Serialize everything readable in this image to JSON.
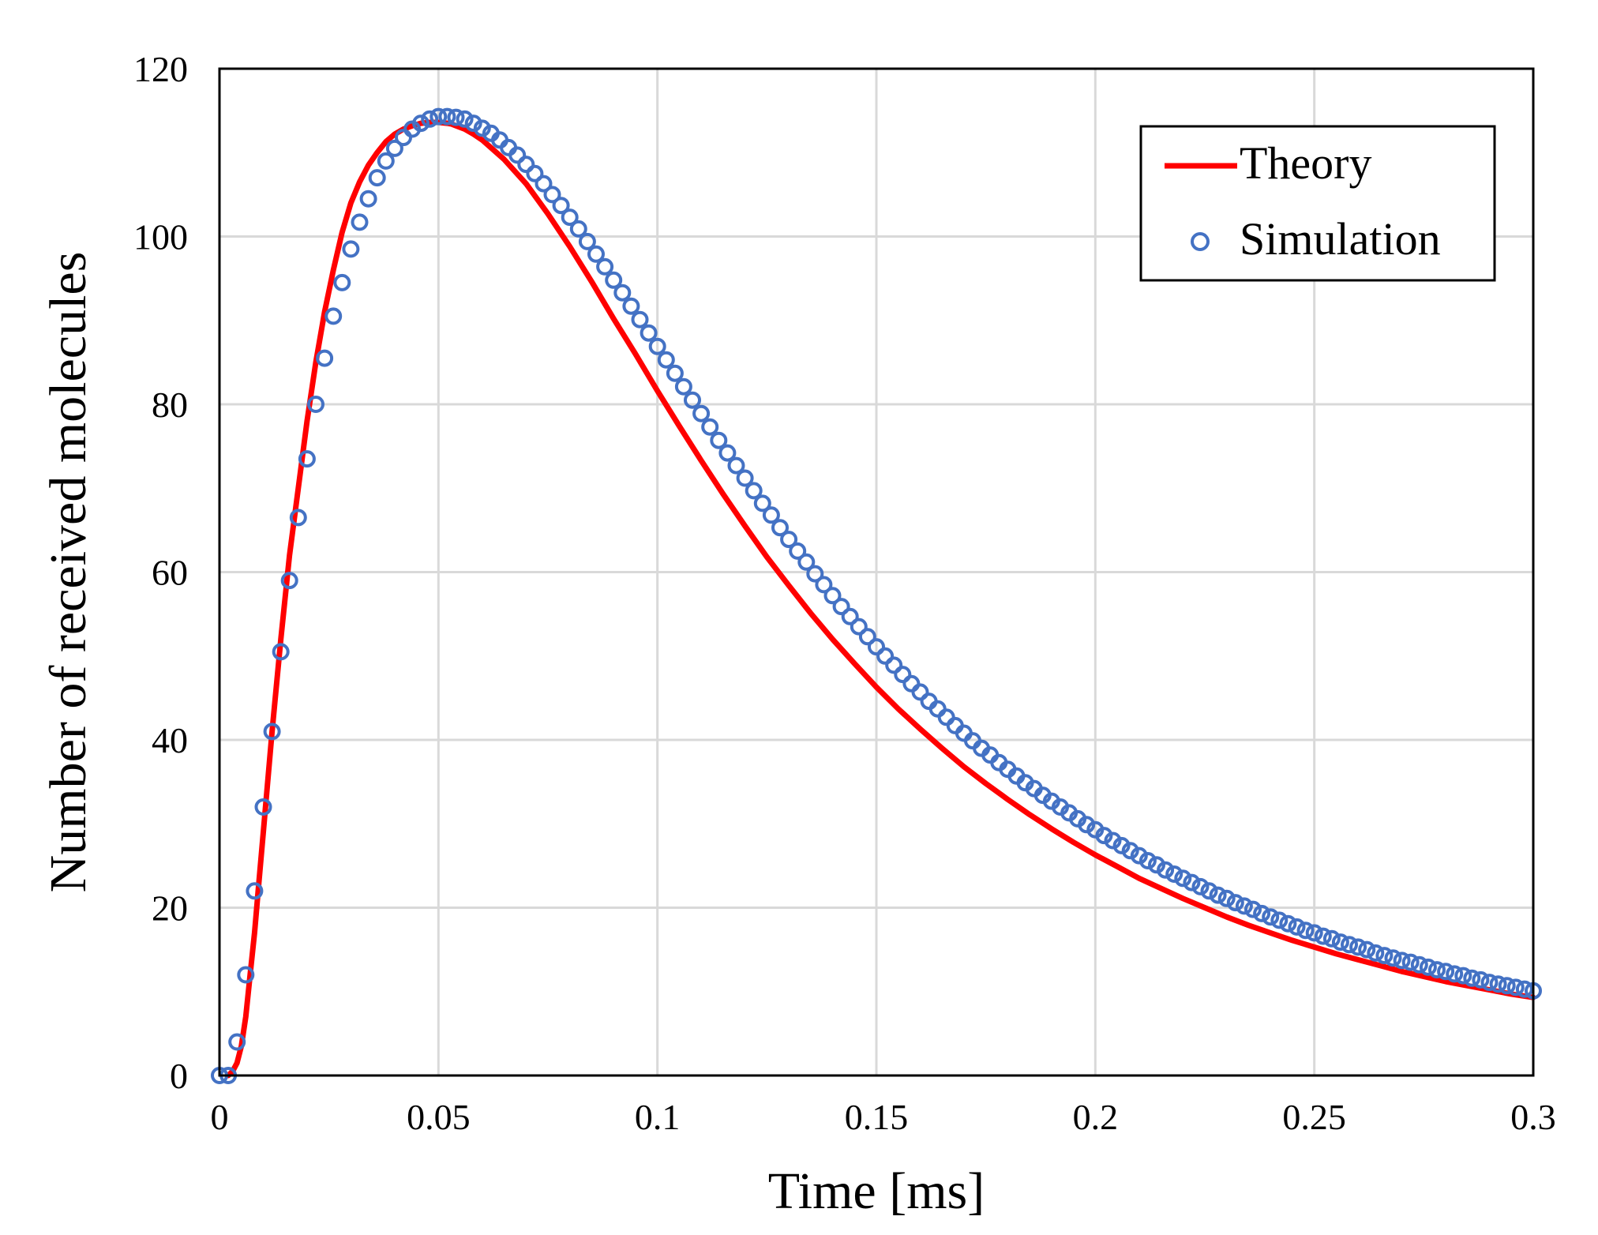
{
  "chart_data": {
    "type": "line",
    "title": "",
    "xlabel": "Time [ms]",
    "ylabel": "Number of received molecules",
    "xlim": [
      0,
      0.3
    ],
    "ylim": [
      0,
      120
    ],
    "xticks": [
      0,
      0.05,
      0.1,
      0.15,
      0.2,
      0.25,
      0.3
    ],
    "xtick_labels": [
      "0",
      "0.05",
      "0.1",
      "0.15",
      "0.2",
      "0.25",
      "0.3"
    ],
    "yticks": [
      0,
      20,
      40,
      60,
      80,
      100,
      120
    ],
    "ytick_labels": [
      "0",
      "20",
      "40",
      "60",
      "80",
      "100",
      "120"
    ],
    "grid": true,
    "legend_position": "top-right",
    "colors": {
      "theory": "#ff0000",
      "simulation": "#4472c4",
      "grid": "#d9d9d9",
      "frame": "#000000"
    },
    "series": [
      {
        "name": "Theory",
        "style": "line",
        "x": [
          0.002,
          0.003,
          0.004,
          0.005,
          0.006,
          0.007,
          0.008,
          0.009,
          0.01,
          0.012,
          0.014,
          0.016,
          0.018,
          0.02,
          0.022,
          0.024,
          0.026,
          0.028,
          0.03,
          0.032,
          0.034,
          0.036,
          0.038,
          0.04,
          0.042,
          0.044,
          0.046,
          0.048,
          0.05,
          0.052,
          0.053,
          0.054,
          0.056,
          0.058,
          0.06,
          0.065,
          0.07,
          0.075,
          0.08,
          0.085,
          0.09,
          0.095,
          0.1,
          0.105,
          0.11,
          0.115,
          0.12,
          0.125,
          0.13,
          0.135,
          0.14,
          0.145,
          0.15,
          0.155,
          0.16,
          0.165,
          0.17,
          0.175,
          0.18,
          0.185,
          0.19,
          0.195,
          0.2,
          0.205,
          0.21,
          0.215,
          0.22,
          0.225,
          0.23,
          0.235,
          0.24,
          0.245,
          0.25,
          0.255,
          0.26,
          0.265,
          0.27,
          0.275,
          0.28,
          0.285,
          0.29,
          0.295,
          0.3
        ],
        "values": [
          0,
          0.5,
          1.5,
          3.5,
          7,
          12,
          17,
          23,
          29,
          41,
          52,
          62,
          70,
          78,
          85,
          91,
          96,
          100.5,
          104,
          106.5,
          108.5,
          110,
          111.3,
          112.2,
          112.8,
          113.2,
          113.5,
          113.6,
          113.6,
          113.5,
          113.4,
          113.2,
          112.8,
          112.2,
          111.5,
          109.2,
          106.3,
          102.7,
          98.8,
          94.6,
          90.2,
          86,
          81.6,
          77.4,
          73.3,
          69.3,
          65.5,
          61.8,
          58.4,
          55.1,
          52,
          49.1,
          46.3,
          43.7,
          41.3,
          39,
          36.8,
          34.8,
          32.9,
          31.1,
          29.4,
          27.8,
          26.3,
          24.9,
          23.5,
          22.3,
          21.1,
          20,
          18.9,
          17.9,
          17,
          16.1,
          15.3,
          14.5,
          13.8,
          13.1,
          12.4,
          11.8,
          11.2,
          10.7,
          10.2,
          9.7,
          9.3
        ]
      },
      {
        "name": "Simulation",
        "style": "markers",
        "x": [
          0.0,
          0.002,
          0.004,
          0.006,
          0.008,
          0.01,
          0.012,
          0.014,
          0.016,
          0.018,
          0.02,
          0.022,
          0.024,
          0.026,
          0.028,
          0.03,
          0.032,
          0.034,
          0.036,
          0.038,
          0.04,
          0.042,
          0.044,
          0.046,
          0.048,
          0.05,
          0.052,
          0.054,
          0.056,
          0.058,
          0.06,
          0.062,
          0.064,
          0.066,
          0.068,
          0.07,
          0.072,
          0.074,
          0.076,
          0.078,
          0.08,
          0.082,
          0.084,
          0.086,
          0.088,
          0.09,
          0.092,
          0.094,
          0.096,
          0.098,
          0.1,
          0.102,
          0.104,
          0.106,
          0.108,
          0.11,
          0.112,
          0.114,
          0.116,
          0.118,
          0.12,
          0.122,
          0.124,
          0.126,
          0.128,
          0.13,
          0.132,
          0.134,
          0.136,
          0.138,
          0.14,
          0.142,
          0.144,
          0.146,
          0.148,
          0.15,
          0.152,
          0.154,
          0.156,
          0.158,
          0.16,
          0.162,
          0.164,
          0.166,
          0.168,
          0.17,
          0.172,
          0.174,
          0.176,
          0.178,
          0.18,
          0.182,
          0.184,
          0.186,
          0.188,
          0.19,
          0.192,
          0.194,
          0.196,
          0.198,
          0.2,
          0.202,
          0.204,
          0.206,
          0.208,
          0.21,
          0.212,
          0.214,
          0.216,
          0.218,
          0.22,
          0.222,
          0.224,
          0.226,
          0.228,
          0.23,
          0.232,
          0.234,
          0.236,
          0.238,
          0.24,
          0.242,
          0.244,
          0.246,
          0.248,
          0.25,
          0.252,
          0.254,
          0.256,
          0.258,
          0.26,
          0.262,
          0.264,
          0.266,
          0.268,
          0.27,
          0.272,
          0.274,
          0.276,
          0.278,
          0.28,
          0.282,
          0.284,
          0.286,
          0.288,
          0.29,
          0.292,
          0.294,
          0.296,
          0.298,
          0.3
        ],
        "values": [
          0,
          0,
          4,
          12,
          22,
          32,
          41,
          50.5,
          59,
          66.5,
          73.5,
          80,
          85.5,
          90.5,
          94.5,
          98.5,
          101.7,
          104.5,
          107,
          109,
          110.5,
          111.8,
          112.8,
          113.5,
          114,
          114.3,
          114.3,
          114.2,
          114,
          113.5,
          112.9,
          112.3,
          111.5,
          110.6,
          109.7,
          108.6,
          107.5,
          106.3,
          105,
          103.7,
          102.3,
          100.9,
          99.4,
          97.9,
          96.4,
          94.8,
          93.3,
          91.7,
          90.1,
          88.5,
          86.9,
          85.3,
          83.7,
          82.1,
          80.5,
          78.9,
          77.3,
          75.7,
          74.2,
          72.7,
          71.2,
          69.7,
          68.2,
          66.8,
          65.3,
          63.9,
          62.5,
          61.2,
          59.8,
          58.5,
          57.2,
          55.9,
          54.7,
          53.5,
          52.3,
          51.1,
          50,
          48.9,
          47.8,
          46.7,
          45.7,
          44.6,
          43.7,
          42.7,
          41.7,
          40.8,
          39.9,
          39,
          38.2,
          37.3,
          36.5,
          35.7,
          34.9,
          34.2,
          33.4,
          32.7,
          32,
          31.3,
          30.6,
          29.9,
          29.3,
          28.6,
          28,
          27.4,
          26.8,
          26.2,
          25.6,
          25.1,
          24.5,
          24,
          23.5,
          23,
          22.5,
          22,
          21.5,
          21.1,
          20.6,
          20.2,
          19.8,
          19.3,
          18.9,
          18.5,
          18.1,
          17.7,
          17.3,
          17,
          16.6,
          16.3,
          15.9,
          15.6,
          15.3,
          15,
          14.6,
          14.3,
          14,
          13.7,
          13.5,
          13.2,
          12.9,
          12.6,
          12.4,
          12.1,
          11.9,
          11.6,
          11.4,
          11.1,
          10.9,
          10.7,
          10.5,
          10.3,
          10.1
        ]
      }
    ]
  }
}
